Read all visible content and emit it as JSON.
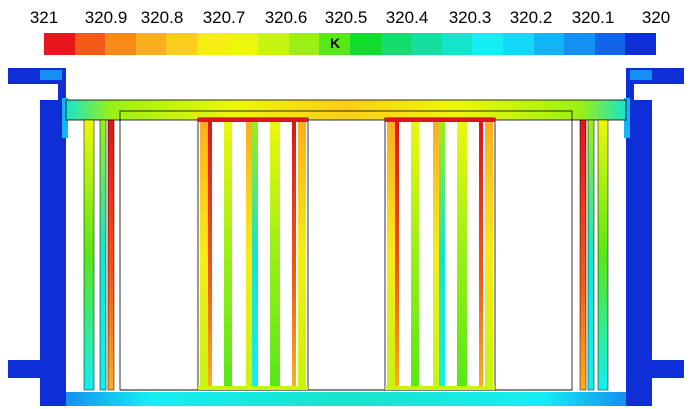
{
  "legend": {
    "ticks": [
      "321",
      "320.9",
      "320.8",
      "320.7",
      "320.6",
      "320.5",
      "320.4",
      "320.3",
      "320.2",
      "320.1",
      "320"
    ],
    "unit": "K",
    "colors": [
      "#e8151c",
      "#f35a17",
      "#f88a18",
      "#fbae1f",
      "#fbcd1c",
      "#f8ec15",
      "#ecf70d",
      "#c8f411",
      "#9bef16",
      "#58e718",
      "#13dd2c",
      "#14dd6e",
      "#15dfa0",
      "#16e4cc",
      "#15eef2",
      "#14d8f9",
      "#14b5f8",
      "#1390f2",
      "#1163e8",
      "#0e2fd8"
    ]
  },
  "field": {
    "wall_color": "#0e2fd8",
    "hot_color": "#e0151b",
    "warm_color": "#f8ec15",
    "mid_color": "#9bef16",
    "cool_color": "#16e4cc",
    "outline_color": "#000000"
  }
}
